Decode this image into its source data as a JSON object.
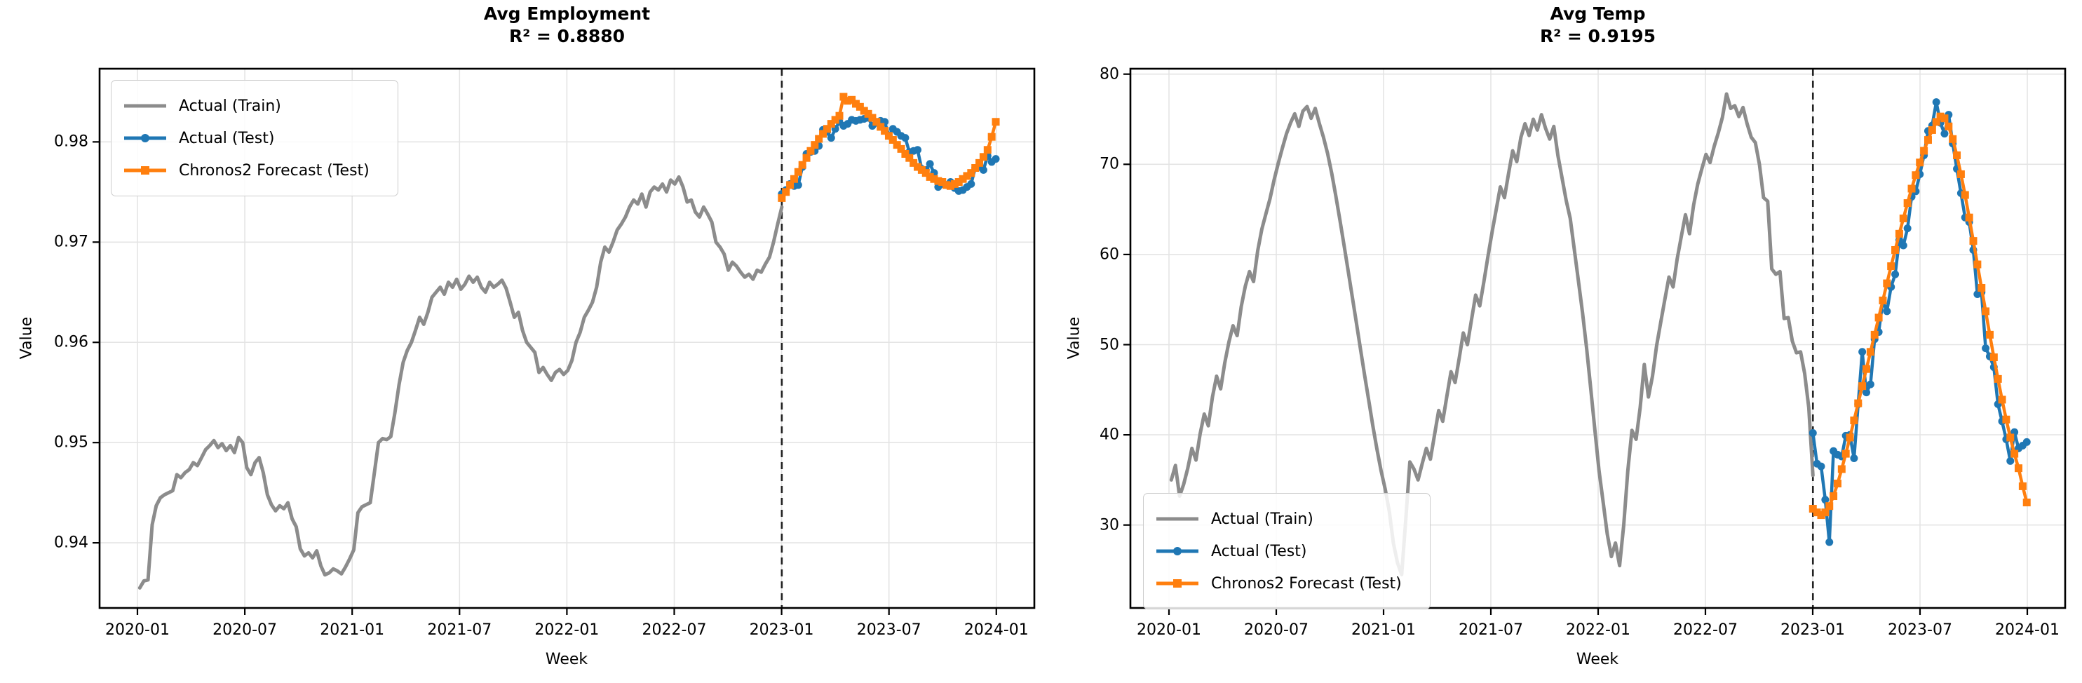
{
  "legend": {
    "items": [
      {
        "label": "Actual (Train)",
        "color": "#8c8c8c",
        "marker": "none"
      },
      {
        "label": "Actual (Test)",
        "color": "#1f77b4",
        "marker": "circle"
      },
      {
        "label": "Chronos2 Forecast (Test)",
        "color": "#ff7f0e",
        "marker": "square"
      }
    ]
  },
  "colors": {
    "train": "#8c8c8c",
    "test": "#1f77b4",
    "forecast": "#ff7f0e",
    "split_line": "#222222",
    "grid": "#e4e4e4",
    "axis": "#000000",
    "background": "#ffffff"
  },
  "chart_data": [
    {
      "type": "line",
      "title": "Avg Employment",
      "subtitle": "R² = 0.8880",
      "xlabel": "Week",
      "ylabel": "Value",
      "x_tick_labels": [
        "2020-01",
        "2020-07",
        "2021-01",
        "2021-07",
        "2022-01",
        "2022-07",
        "2023-01",
        "2023-07",
        "2024-01"
      ],
      "y_ticks": [
        0.98,
        0.97,
        0.96,
        0.95,
        0.94
      ],
      "y_tick_labels": [
        "0.98",
        "0.97",
        "0.96",
        "0.95",
        "0.94"
      ],
      "ylim": [
        0.9335,
        0.9873
      ],
      "split_week": 156.57,
      "grid": true,
      "legend_position": "upper-left",
      "series": [
        {
          "name": "Actual (Train)",
          "color": "#8c8c8c",
          "marker": "none",
          "start_week": 0.57,
          "values": [
            0.9355,
            0.9362,
            0.9363,
            0.9418,
            0.9437,
            0.9445,
            0.9448,
            0.945,
            0.9452,
            0.9468,
            0.9465,
            0.947,
            0.9473,
            0.948,
            0.9477,
            0.9485,
            0.9493,
            0.9497,
            0.9502,
            0.9495,
            0.9499,
            0.9492,
            0.9497,
            0.949,
            0.9505,
            0.95,
            0.9475,
            0.9468,
            0.948,
            0.9485,
            0.947,
            0.9448,
            0.9438,
            0.9432,
            0.9437,
            0.9434,
            0.944,
            0.9424,
            0.9416,
            0.9394,
            0.9387,
            0.939,
            0.9385,
            0.9392,
            0.9377,
            0.9368,
            0.937,
            0.9374,
            0.9372,
            0.9369,
            0.9376,
            0.9384,
            0.9393,
            0.943,
            0.9436,
            0.9438,
            0.944,
            0.947,
            0.95,
            0.9504,
            0.9503,
            0.9506,
            0.953,
            0.9558,
            0.958,
            0.9592,
            0.96,
            0.9612,
            0.9625,
            0.9618,
            0.963,
            0.9645,
            0.965,
            0.9655,
            0.9648,
            0.966,
            0.9655,
            0.9663,
            0.9653,
            0.9658,
            0.9666,
            0.966,
            0.9665,
            0.9655,
            0.965,
            0.966,
            0.9655,
            0.9658,
            0.9662,
            0.9654,
            0.964,
            0.9625,
            0.963,
            0.9612,
            0.96,
            0.9595,
            0.959,
            0.957,
            0.9575,
            0.9568,
            0.9562,
            0.957,
            0.9573,
            0.9568,
            0.9572,
            0.9582,
            0.96,
            0.961,
            0.9625,
            0.9632,
            0.964,
            0.9655,
            0.968,
            0.9695,
            0.969,
            0.97,
            0.9712,
            0.9718,
            0.9725,
            0.9735,
            0.9742,
            0.9738,
            0.9748,
            0.9735,
            0.975,
            0.9755,
            0.9752,
            0.9758,
            0.975,
            0.9762,
            0.9758,
            0.9765,
            0.9755,
            0.974,
            0.9742,
            0.973,
            0.9725,
            0.9735,
            0.9728,
            0.972,
            0.97,
            0.9695,
            0.9688,
            0.9672,
            0.968,
            0.9676,
            0.967,
            0.9665,
            0.9668,
            0.9663,
            0.9672,
            0.967,
            0.9678,
            0.9685,
            0.97,
            0.9718,
            0.9735
          ]
        },
        {
          "name": "Actual (Test)",
          "color": "#1f77b4",
          "marker": "circle",
          "start_week": 156.57,
          "values": [
            0.9748,
            0.9752,
            0.9758,
            0.9756,
            0.9757,
            0.9775,
            0.9788,
            0.979,
            0.9791,
            0.9796,
            0.9812,
            0.981,
            0.9804,
            0.9813,
            0.982,
            0.9816,
            0.9818,
            0.9822,
            0.9821,
            0.9822,
            0.9823,
            0.9824,
            0.9816,
            0.9819,
            0.9821,
            0.982,
            0.9806,
            0.9813,
            0.981,
            0.9806,
            0.9804,
            0.979,
            0.9791,
            0.9792,
            0.9773,
            0.9772,
            0.9778,
            0.9769,
            0.9755,
            0.9758,
            0.9757,
            0.976,
            0.9754,
            0.9751,
            0.9752,
            0.9755,
            0.9758,
            0.9774,
            0.9775,
            0.9772,
            0.9786,
            0.978,
            0.9783
          ]
        },
        {
          "name": "Chronos2 Forecast (Test)",
          "color": "#ff7f0e",
          "marker": "square",
          "start_week": 156.57,
          "values": [
            0.9744,
            0.975,
            0.9757,
            0.9763,
            0.977,
            0.9777,
            0.9784,
            0.9791,
            0.9797,
            0.9803,
            0.9808,
            0.9813,
            0.9818,
            0.9822,
            0.9826,
            0.9845,
            0.9841,
            0.9842,
            0.9838,
            0.9835,
            0.9831,
            0.9828,
            0.9824,
            0.982,
            0.9815,
            0.9811,
            0.9806,
            0.9802,
            0.9797,
            0.9793,
            0.9788,
            0.9784,
            0.9779,
            0.9775,
            0.9772,
            0.9769,
            0.9765,
            0.9763,
            0.9761,
            0.976,
            0.9757,
            0.9756,
            0.9758,
            0.976,
            0.9763,
            0.9766,
            0.9769,
            0.9774,
            0.9779,
            0.9785,
            0.9792,
            0.9805,
            0.982
          ]
        }
      ]
    },
    {
      "type": "line",
      "title": "Avg Temp",
      "subtitle": "R² = 0.9195",
      "xlabel": "Week",
      "ylabel": "Value",
      "x_tick_labels": [
        "2020-01",
        "2020-07",
        "2021-01",
        "2021-07",
        "2022-01",
        "2022-07",
        "2023-01",
        "2023-07",
        "2024-01"
      ],
      "y_ticks": [
        80,
        70,
        60,
        50,
        40,
        30
      ],
      "y_tick_labels": [
        "80",
        "70",
        "60",
        "50",
        "40",
        "30"
      ],
      "ylim": [
        20.8,
        80.6
      ],
      "split_week": 156.57,
      "grid": true,
      "legend_position": "lower-left",
      "series": [
        {
          "name": "Actual (Train)",
          "color": "#8c8c8c",
          "marker": "none",
          "start_week": 0.57,
          "values": [
            35.0,
            36.6,
            33.2,
            34.5,
            36.3,
            38.5,
            37.2,
            40.1,
            42.3,
            41.0,
            44.2,
            46.5,
            45.1,
            48.0,
            50.3,
            52.1,
            51.0,
            54.2,
            56.5,
            58.1,
            57.0,
            60.4,
            62.8,
            64.5,
            66.2,
            68.3,
            70.1,
            71.8,
            73.4,
            74.6,
            75.6,
            74.2,
            75.9,
            76.4,
            75.1,
            76.2,
            74.5,
            73.0,
            71.2,
            69.0,
            66.5,
            63.8,
            61.0,
            58.2,
            55.3,
            52.4,
            49.5,
            46.6,
            43.8,
            41.0,
            38.4,
            36.0,
            34.0,
            31.5,
            28.0,
            25.8,
            24.5,
            30.5,
            37.0,
            36.2,
            35.0,
            36.8,
            38.5,
            37.3,
            40.0,
            42.7,
            41.5,
            44.3,
            47.0,
            45.8,
            48.5,
            51.3,
            50.0,
            52.8,
            55.5,
            54.3,
            57.0,
            59.8,
            62.5,
            65.0,
            67.5,
            66.3,
            69.0,
            71.5,
            70.3,
            73.0,
            74.5,
            73.2,
            75.0,
            73.8,
            75.5,
            74.0,
            72.8,
            74.2,
            71.0,
            68.5,
            66.0,
            64.0,
            60.5,
            57.0,
            53.5,
            49.5,
            45.0,
            40.5,
            36.0,
            32.5,
            29.0,
            26.5,
            28.0,
            25.5,
            30.0,
            36.0,
            40.5,
            39.5,
            43.0,
            47.8,
            44.2,
            46.5,
            49.9,
            52.5,
            55.0,
            57.5,
            56.4,
            59.5,
            62.0,
            64.4,
            62.3,
            65.5,
            67.8,
            69.5,
            71.1,
            70.2,
            72.0,
            73.5,
            75.2,
            77.8,
            76.2,
            76.5,
            75.3,
            76.3,
            74.5,
            73.0,
            72.4,
            70.0,
            66.3,
            65.9,
            58.4,
            57.8,
            58.1,
            52.9,
            53.0,
            50.4,
            49.1,
            49.2,
            46.8,
            43.0,
            35.5
          ]
        },
        {
          "name": "Actual (Test)",
          "color": "#1f77b4",
          "marker": "circle",
          "start_week": 156.57,
          "values": [
            40.2,
            36.8,
            36.5,
            32.8,
            28.1,
            38.2,
            37.8,
            37.6,
            39.9,
            40.0,
            37.4,
            43.4,
            49.2,
            44.7,
            45.6,
            50.6,
            51.4,
            54.9,
            53.7,
            56.4,
            57.8,
            61.6,
            61.0,
            62.9,
            66.4,
            67.0,
            68.9,
            71.0,
            73.7,
            74.3,
            76.9,
            74.6,
            73.4,
            75.5,
            72.3,
            69.5,
            66.8,
            64.1,
            63.6,
            60.5,
            55.6,
            55.8,
            49.6,
            48.7,
            47.5,
            43.4,
            41.5,
            39.5,
            37.1,
            40.3,
            38.5,
            38.8,
            39.2
          ]
        },
        {
          "name": "Chronos2 Forecast (Test)",
          "color": "#ff7f0e",
          "marker": "square",
          "start_week": 156.57,
          "values": [
            31.8,
            31.4,
            31.1,
            31.4,
            32.1,
            33.2,
            34.6,
            36.2,
            37.9,
            39.7,
            41.6,
            43.5,
            45.4,
            47.3,
            49.2,
            51.1,
            53.0,
            54.9,
            56.8,
            58.7,
            60.5,
            62.3,
            64.0,
            65.7,
            67.3,
            68.8,
            70.2,
            71.5,
            72.7,
            73.8,
            74.7,
            75.3,
            75.1,
            74.2,
            72.8,
            71.0,
            68.9,
            66.6,
            64.1,
            61.5,
            58.9,
            56.3,
            53.7,
            51.1,
            48.6,
            46.2,
            43.9,
            41.7,
            39.7,
            37.9,
            36.3,
            34.3,
            32.5
          ]
        }
      ]
    }
  ]
}
